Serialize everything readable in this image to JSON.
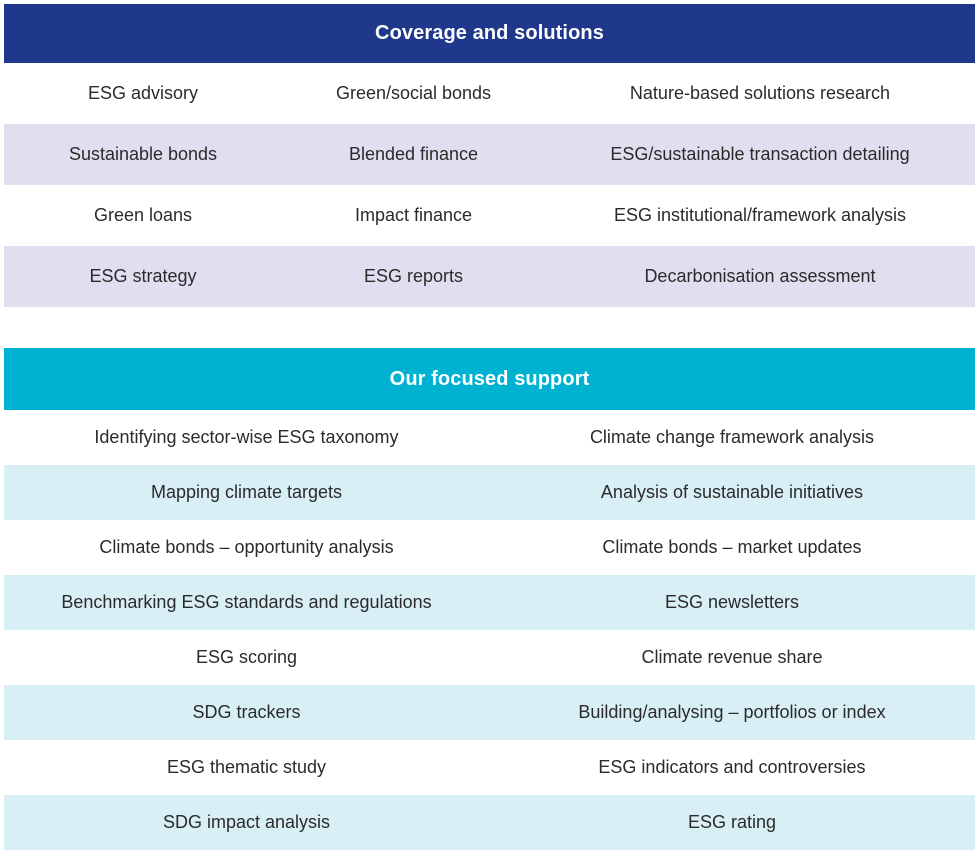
{
  "coverage": {
    "title": "Coverage and solutions",
    "rows": [
      [
        "ESG advisory",
        "Green/social bonds",
        "Nature-based solutions research"
      ],
      [
        "Sustainable bonds",
        "Blended finance",
        "ESG/sustainable transaction detailing"
      ],
      [
        "Green loans",
        "Impact finance",
        "ESG institutional/framework analysis"
      ],
      [
        "ESG strategy",
        "ESG reports",
        "Decarbonisation assessment"
      ]
    ]
  },
  "support": {
    "title": "Our focused support",
    "rows": [
      [
        "Identifying sector-wise ESG taxonomy",
        "Climate change framework analysis"
      ],
      [
        "Mapping climate targets",
        "Analysis of sustainable initiatives"
      ],
      [
        "Climate bonds – opportunity analysis",
        "Climate bonds – market updates"
      ],
      [
        "Benchmarking ESG standards and regulations",
        "ESG newsletters"
      ],
      [
        "ESG scoring",
        "Climate revenue share"
      ],
      [
        "SDG trackers",
        "Building/analysing – portfolios or index"
      ],
      [
        "ESG thematic study",
        "ESG indicators and controversies"
      ],
      [
        "SDG impact analysis",
        "ESG rating"
      ]
    ]
  },
  "colors": {
    "coverage_header": "#1f388c",
    "coverage_shaded_row": "#e0dff0",
    "support_header": "#00b2d1",
    "support_shaded_row": "#d8eff6"
  }
}
